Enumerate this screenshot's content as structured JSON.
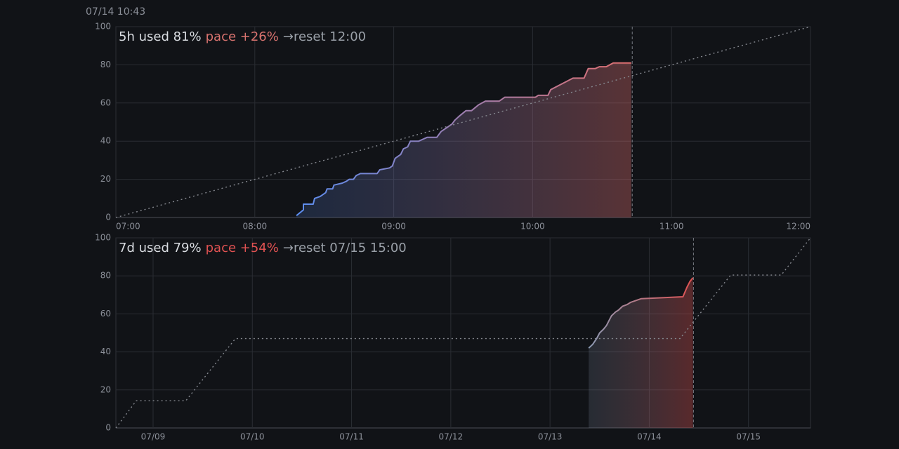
{
  "header": {
    "timestamp": "07/14 10:43"
  },
  "chart_data": [
    {
      "type": "line",
      "title_parts": [
        {
          "text": "5h used 81%",
          "color": "#d9dce1"
        },
        {
          "text": "pace +26%",
          "color": "#d9736f"
        },
        {
          "text": "→reset 12:00",
          "color": "#9aa0a8"
        }
      ],
      "xlim": [
        7,
        12
      ],
      "xticks": [
        {
          "value": 7,
          "label": "07:00"
        },
        {
          "value": 8,
          "label": "08:00"
        },
        {
          "value": 9,
          "label": "09:00"
        },
        {
          "value": 10,
          "label": "10:00"
        },
        {
          "value": 11,
          "label": "11:00"
        },
        {
          "value": 12,
          "label": "12:00"
        }
      ],
      "ylim": [
        0,
        100
      ],
      "yticks": [
        0,
        20,
        40,
        60,
        80,
        100
      ],
      "grid": true,
      "now_x": 10.717,
      "series": [
        {
          "x": [
            8.3,
            8.35,
            8.35,
            8.42,
            8.43,
            8.47,
            8.51,
            8.52,
            8.56,
            8.57,
            8.63,
            8.66,
            8.68,
            8.71,
            8.73,
            8.76,
            8.88,
            8.9,
            8.97,
            8.99,
            9.01,
            9.05,
            9.07,
            9.1,
            9.12,
            9.18,
            9.21,
            9.24,
            9.31,
            9.34,
            9.38,
            9.42,
            9.44,
            9.47,
            9.52,
            9.56,
            9.61,
            9.66,
            9.76,
            9.8,
            10.02,
            10.04,
            10.11,
            10.13,
            10.29,
            10.37,
            10.4,
            10.45,
            10.48,
            10.53,
            10.58,
            10.71
          ],
          "values": [
            1,
            4,
            7,
            7,
            10,
            11,
            13,
            15,
            15,
            17,
            18,
            19,
            20,
            20,
            22,
            23,
            23,
            25,
            26,
            27,
            31,
            33,
            36,
            37,
            40,
            40,
            41,
            42,
            42,
            45,
            47,
            49,
            51,
            53,
            56,
            56,
            59,
            61,
            61,
            63,
            63,
            64,
            64,
            67,
            73,
            73,
            78,
            78,
            79,
            79,
            81,
            81
          ],
          "color_start": "#5b8def",
          "color_end": "#e06f6f",
          "fill": true
        },
        {
          "x": [
            7,
            12
          ],
          "values": [
            0,
            100
          ],
          "color": "#85888f",
          "dash": true
        }
      ]
    },
    {
      "type": "line",
      "title_parts": [
        {
          "text": "7d used 79%",
          "color": "#d9dce1"
        },
        {
          "text": "pace +54%",
          "color": "#e05252"
        },
        {
          "text": "→reset 07/15 15:00",
          "color": "#9aa0a8"
        }
      ],
      "xlim": [
        8.625,
        15.625
      ],
      "xticks": [
        {
          "value": 9,
          "label": "07/09"
        },
        {
          "value": 10,
          "label": "07/10"
        },
        {
          "value": 11,
          "label": "07/11"
        },
        {
          "value": 12,
          "label": "07/12"
        },
        {
          "value": 13,
          "label": "07/13"
        },
        {
          "value": 14,
          "label": "07/14"
        },
        {
          "value": 15,
          "label": "07/15"
        }
      ],
      "ylim": [
        0,
        100
      ],
      "yticks": [
        0,
        20,
        40,
        60,
        80,
        100
      ],
      "grid": true,
      "now_x": 14.446,
      "series": [
        {
          "x": [
            13.39,
            13.43,
            13.47,
            13.5,
            13.54,
            13.57,
            13.59,
            13.62,
            13.66,
            13.69,
            13.73,
            13.78,
            13.81,
            13.92,
            14.34,
            14.38,
            14.41,
            14.44
          ],
          "values": [
            42,
            44,
            47,
            50,
            52,
            54,
            56,
            59,
            61,
            62,
            64,
            65,
            66,
            68,
            69,
            74,
            77,
            79
          ],
          "color_start": "#8c9ab3",
          "color_end": "#e05252",
          "fill": true
        },
        {
          "x": [
            8.625,
            8.83,
            9.33,
            9.83,
            14.31,
            14.82,
            15.33,
            15.625
          ],
          "values": [
            0,
            14.3,
            14.3,
            47,
            47,
            80.4,
            80.4,
            100
          ],
          "color": "#85888f",
          "dash": true
        }
      ]
    }
  ]
}
